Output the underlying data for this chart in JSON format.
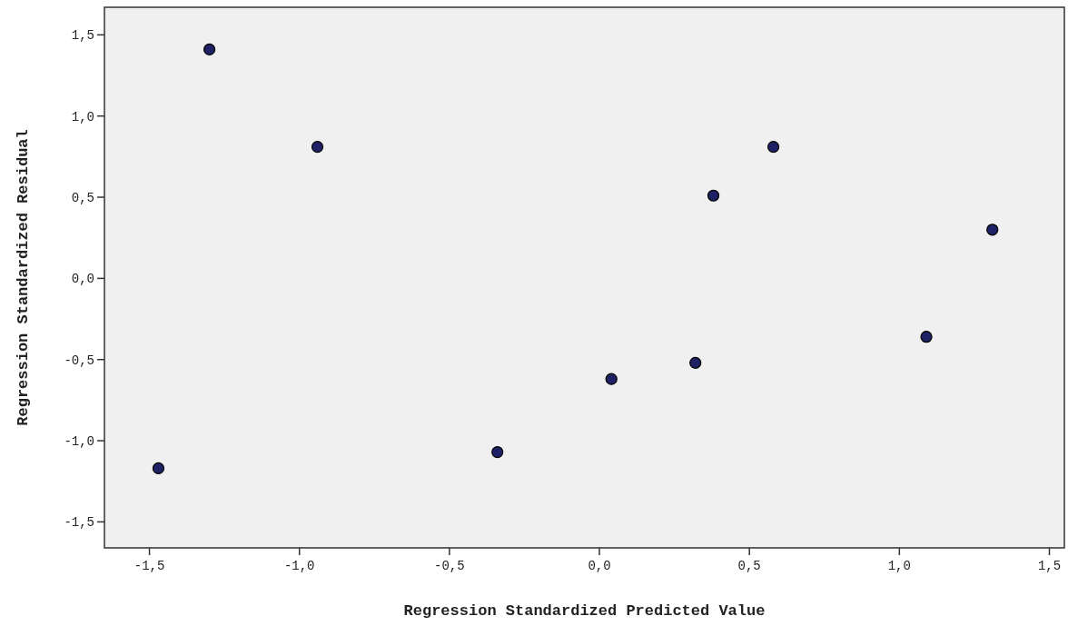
{
  "chart_data": {
    "type": "scatter",
    "xlabel": "Regression Standardized Predicted Value",
    "ylabel": "Regression Standardized Residual",
    "x": [
      -1.47,
      -1.3,
      -0.94,
      -0.34,
      0.04,
      0.32,
      0.38,
      0.58,
      1.09,
      1.31
    ],
    "series": [
      {
        "color": "#1e2163",
        "values": [
          -1.17,
          1.41,
          0.81,
          -1.07,
          -0.62,
          -0.52,
          0.51,
          0.81,
          -0.36,
          0.3
        ]
      }
    ],
    "marker": "circle",
    "grid": false,
    "xlim": [
      -1.65,
      1.55
    ],
    "ylim": [
      -1.66,
      1.67
    ],
    "xticks": [
      {
        "value": -1.5,
        "label": "-1,5"
      },
      {
        "value": -1,
        "label": "-1,0"
      },
      {
        "value": -0.5,
        "label": "-0,5"
      },
      {
        "value": 0,
        "label": "0,0"
      },
      {
        "value": 0.5,
        "label": "0,5"
      },
      {
        "value": 1,
        "label": "1,0"
      },
      {
        "value": 1.5,
        "label": "1,5"
      }
    ],
    "yticks": [
      {
        "value": -1.5,
        "label": "-1,5"
      },
      {
        "value": -1,
        "label": "-1,0"
      },
      {
        "value": -0.5,
        "label": "-0,5"
      },
      {
        "value": 0,
        "label": "0,0"
      },
      {
        "value": 0.5,
        "label": "0,5"
      },
      {
        "value": 1,
        "label": "1,0"
      },
      {
        "value": 1.5,
        "label": "1,5"
      }
    ]
  }
}
